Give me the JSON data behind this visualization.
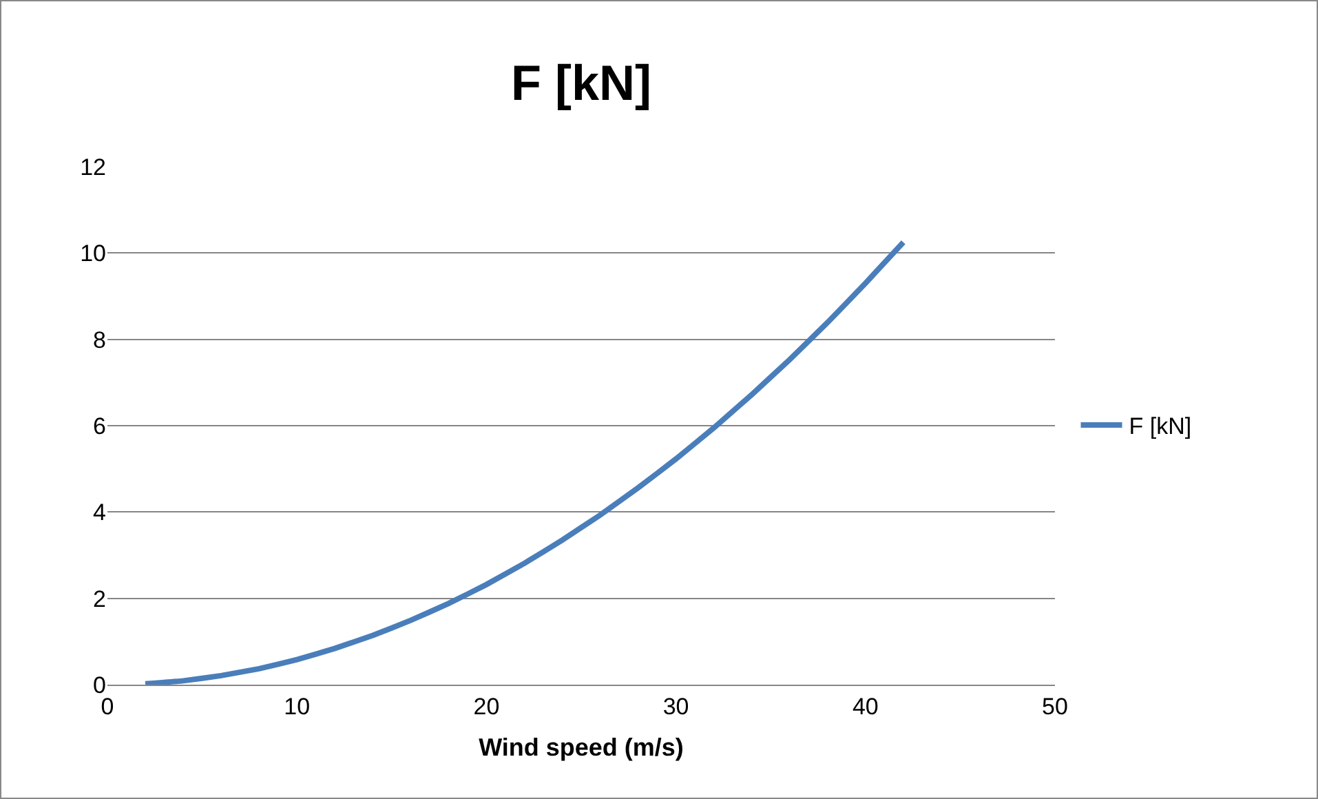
{
  "chart_data": {
    "type": "line",
    "title": "F [kN]",
    "xlabel": "Wind speed (m/s)",
    "x": [
      2,
      4,
      6,
      8,
      10,
      12,
      14,
      16,
      18,
      20,
      22,
      24,
      26,
      28,
      30,
      32,
      34,
      36,
      38,
      40,
      42
    ],
    "series": [
      {
        "name": "F [kN]",
        "color": "#4a7ebb",
        "values": [
          0.02,
          0.09,
          0.21,
          0.37,
          0.58,
          0.84,
          1.14,
          1.49,
          1.88,
          2.32,
          2.81,
          3.35,
          3.93,
          4.56,
          5.23,
          5.95,
          6.72,
          7.53,
          8.39,
          9.3,
          10.25
        ]
      }
    ],
    "xlim": [
      0,
      50
    ],
    "xticks": [
      0,
      10,
      20,
      30,
      40,
      50
    ],
    "ylim": [
      0,
      12
    ],
    "yticks": [
      0,
      2,
      4,
      6,
      8,
      10,
      12
    ],
    "grid": "y",
    "legend": "right",
    "marker": "none",
    "line_style": "solid"
  }
}
